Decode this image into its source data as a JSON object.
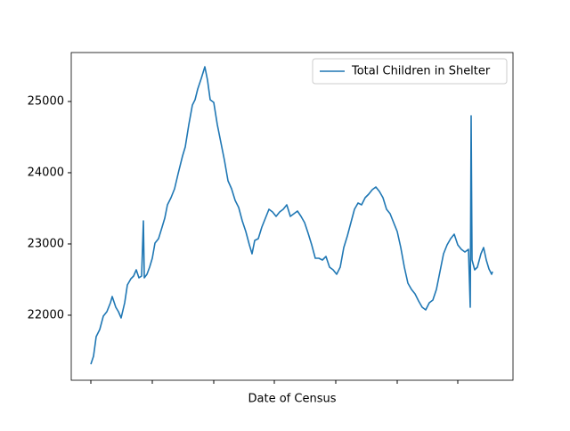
{
  "chart_data": {
    "type": "line",
    "xlabel": "Date of Census",
    "x": [
      0,
      3,
      6,
      10,
      14,
      18,
      22,
      24,
      28,
      31,
      34,
      38,
      41,
      45,
      48,
      51,
      54,
      57,
      59,
      60,
      63,
      66,
      69,
      72,
      76,
      80,
      83,
      86,
      90,
      94,
      98,
      103,
      106,
      110,
      114,
      117,
      120,
      124,
      128,
      131,
      134,
      138,
      142,
      146,
      150,
      154,
      158,
      162,
      166,
      170,
      174,
      178,
      181,
      184,
      188,
      192,
      196,
      200,
      204,
      208,
      212,
      216,
      220,
      224,
      228,
      232,
      236,
      240,
      244,
      248,
      252,
      256,
      260,
      264,
      268,
      272,
      276,
      280,
      284,
      288,
      292,
      296,
      300,
      304,
      308,
      312,
      316,
      320,
      324,
      328,
      332,
      336,
      340,
      344,
      348,
      352,
      356,
      360,
      364,
      368,
      372,
      376,
      380,
      384,
      388,
      392,
      396,
      400,
      404,
      408,
      412,
      416,
      420,
      424,
      426,
      427,
      428,
      431,
      434,
      438,
      441,
      444,
      447,
      450,
      451
    ],
    "series": [
      {
        "name": "Total Children in Shelter",
        "color": "#1f77b4",
        "values": [
          21312,
          21425,
          21700,
          21800,
          21987,
          22050,
          22175,
          22262,
          22112,
          22050,
          21962,
          22175,
          22425,
          22512,
          22550,
          22637,
          22525,
          22550,
          23325,
          22525,
          22575,
          22675,
          22800,
          23012,
          23075,
          23237,
          23362,
          23550,
          23650,
          23775,
          23987,
          24237,
          24362,
          24675,
          24950,
          25025,
          25175,
          25325,
          25487,
          25300,
          25025,
          24987,
          24675,
          24425,
          24175,
          23887,
          23775,
          23612,
          23512,
          23325,
          23175,
          22987,
          22862,
          23050,
          23075,
          23237,
          23362,
          23487,
          23450,
          23387,
          23450,
          23487,
          23550,
          23387,
          23425,
          23462,
          23387,
          23300,
          23150,
          22987,
          22800,
          22800,
          22775,
          22825,
          22675,
          22637,
          22575,
          22675,
          22950,
          23112,
          23300,
          23487,
          23575,
          23550,
          23650,
          23700,
          23762,
          23800,
          23737,
          23650,
          23487,
          23425,
          23300,
          23175,
          22950,
          22675,
          22450,
          22362,
          22300,
          22200,
          22112,
          22075,
          22175,
          22212,
          22362,
          22612,
          22862,
          22987,
          23075,
          23137,
          22987,
          22925,
          22887,
          22925,
          22112,
          24800,
          22775,
          22637,
          22675,
          22862,
          22950,
          22775,
          22650,
          22575,
          22612
        ]
      }
    ],
    "xlim": [
      -22,
      474
    ],
    "xticks": [
      0,
      69,
      138,
      206,
      275,
      344,
      412
    ],
    "ylim": [
      21087,
      25687
    ],
    "yticks": [
      22000,
      23000,
      24000,
      25000
    ],
    "legend": "upper right"
  }
}
